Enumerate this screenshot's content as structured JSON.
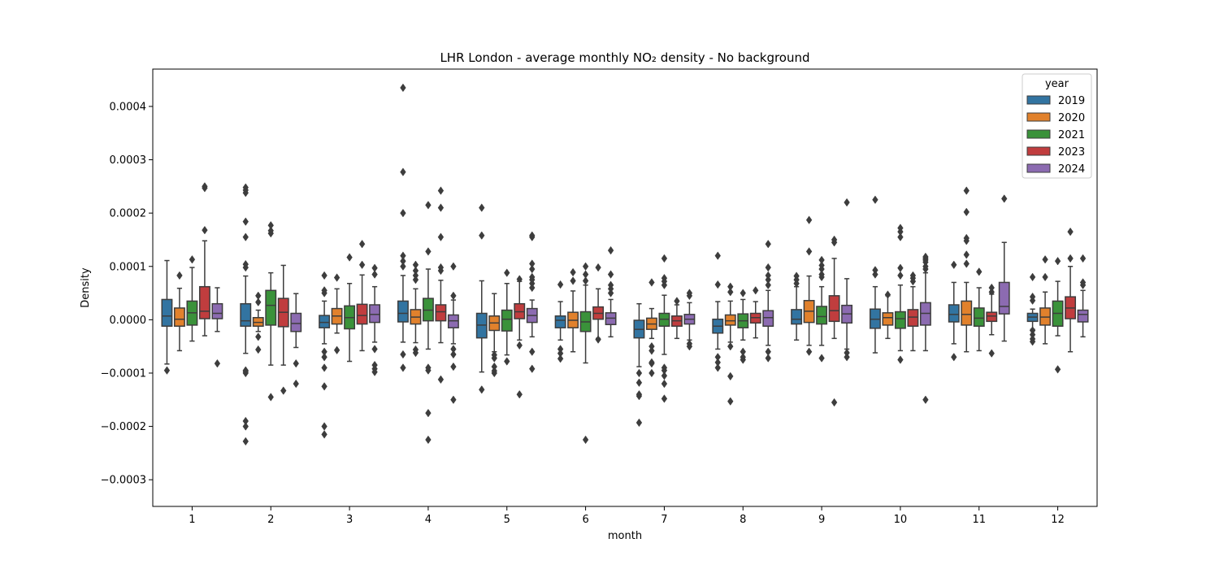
{
  "chart_data": {
    "type": "boxplot",
    "title": "LHR London - average monthly NO₂ density - No background",
    "xlabel": "month",
    "ylabel": "Density",
    "ylim": [
      -0.00035,
      0.00047
    ],
    "yticks": [
      -0.0003,
      -0.0002,
      -0.0001,
      0.0,
      0.0001,
      0.0002,
      0.0003,
      0.0004
    ],
    "ytick_labels": [
      "−0.0003",
      "−0.0002",
      "−0.0001",
      "0.0000",
      "0.0001",
      "0.0002",
      "0.0003",
      "0.0004"
    ],
    "categories": [
      "1",
      "2",
      "3",
      "4",
      "5",
      "6",
      "7",
      "8",
      "9",
      "10",
      "11",
      "12"
    ],
    "legend": {
      "title": "year",
      "position": "top-right"
    },
    "grid": false,
    "series": [
      {
        "name": "2019",
        "color": "#3274a1",
        "boxes": [
          {
            "q1": -1.2e-05,
            "median": 7e-06,
            "q3": 3.8e-05,
            "low": -8.3e-05,
            "high": 0.000111,
            "outliers": [
              -9.5e-05
            ]
          },
          {
            "q1": -1.2e-05,
            "median": -2e-06,
            "q3": 3e-05,
            "low": -6.3e-05,
            "high": 8.2e-05,
            "outliers": [
              -9.5e-05,
              -0.0001,
              -9.7e-05,
              -0.00019,
              -0.0002,
              -0.000228,
              9.8e-05,
              0.000104,
              0.000155,
              0.000184,
              0.000238,
              0.000243,
              0.000248
            ]
          },
          {
            "q1": -1.5e-05,
            "median": -5e-06,
            "q3": 8e-06,
            "low": -4.5e-05,
            "high": 3.5e-05,
            "outliers": [
              -6e-05,
              -7e-05,
              -9e-05,
              -0.000125,
              -0.0002,
              -0.000215,
              5e-05,
              5.5e-05,
              8.3e-05
            ]
          },
          {
            "q1": -4e-06,
            "median": 1.2e-05,
            "q3": 3.5e-05,
            "low": -4.2e-05,
            "high": 8.3e-05,
            "outliers": [
              -6.5e-05,
              -9e-05,
              0.0001,
              0.00011,
              0.00012,
              0.0002,
              0.000277,
              0.000435
            ]
          },
          {
            "q1": -3.4e-05,
            "median": -1e-05,
            "q3": 1.2e-05,
            "low": -9.8e-05,
            "high": 7.3e-05,
            "outliers": [
              -0.000131,
              0.000158,
              0.00021
            ]
          },
          {
            "q1": -1.5e-05,
            "median": -1e-06,
            "q3": 7e-06,
            "low": -3.8e-05,
            "high": 3.4e-05,
            "outliers": [
              -5.5e-05,
              -6.3e-05,
              -7.3e-05,
              6.6e-05
            ]
          },
          {
            "q1": -3.4e-05,
            "median": -1.8e-05,
            "q3": -1e-06,
            "low": -8.8e-05,
            "high": 3e-05,
            "outliers": [
              -0.0001,
              -0.000118,
              -0.00014,
              -0.000143,
              -0.000193
            ]
          },
          {
            "q1": -2.5e-05,
            "median": -1.2e-05,
            "q3": 1e-06,
            "low": -5.5e-05,
            "high": 3.4e-05,
            "outliers": [
              -7e-05,
              -8e-05,
              -9e-05,
              6.6e-05,
              0.00012
            ]
          },
          {
            "q1": -8e-06,
            "median": 1e-06,
            "q3": 1.9e-05,
            "low": -3.8e-05,
            "high": 6.2e-05,
            "outliers": [
              6.8e-05,
              7.5e-05,
              8.2e-05
            ]
          },
          {
            "q1": -1.6e-05,
            "median": 1e-06,
            "q3": 2e-05,
            "low": -6.2e-05,
            "high": 6.2e-05,
            "outliers": [
              8.5e-05,
              9.3e-05,
              0.000225
            ]
          },
          {
            "q1": -4e-06,
            "median": 1e-05,
            "q3": 2.8e-05,
            "low": -4.5e-05,
            "high": 7e-05,
            "outliers": [
              -7e-05,
              0.000103
            ]
          },
          {
            "q1": -3e-06,
            "median": 5e-06,
            "q3": 1.2e-05,
            "low": -1.8e-05,
            "high": 2e-05,
            "outliers": [
              -2e-05,
              -2.8e-05,
              -3.6e-05,
              -4.1e-05,
              3.6e-05,
              4.3e-05,
              8e-05
            ]
          }
        ]
      },
      {
        "name": "2020",
        "color": "#e1812c",
        "boxes": [
          {
            "q1": -1.2e-05,
            "median": 1e-06,
            "q3": 2.2e-05,
            "low": -5.8e-05,
            "high": 5.9e-05,
            "outliers": [
              8.3e-05
            ]
          },
          {
            "q1": -1.2e-05,
            "median": -5e-06,
            "q3": 4e-06,
            "low": -2.2e-05,
            "high": 1.8e-05,
            "outliers": [
              -3.2e-05,
              -5.6e-05,
              3.3e-05,
              4.5e-05
            ]
          },
          {
            "q1": -8e-06,
            "median": 7e-06,
            "q3": 2.1e-05,
            "low": -2.5e-05,
            "high": 5.8e-05,
            "outliers": [
              -5.7e-05,
              7.9e-05
            ]
          },
          {
            "q1": -8e-06,
            "median": 5e-06,
            "q3": 1.9e-05,
            "low": -4.3e-05,
            "high": 5.8e-05,
            "outliers": [
              -5.6e-05,
              -6.2e-05,
              7.5e-05,
              8.3e-05,
              9.2e-05,
              0.000103
            ]
          },
          {
            "q1": -2e-05,
            "median": -6e-06,
            "q3": 7e-06,
            "low": -6e-05,
            "high": 4.9e-05,
            "outliers": [
              -6.6e-05,
              -7.2e-05,
              -8.8e-05,
              -9.6e-05,
              -0.0001
            ]
          },
          {
            "q1": -1.5e-05,
            "median": -1e-06,
            "q3": 1.4e-05,
            "low": -6e-05,
            "high": 5.4e-05,
            "outliers": [
              7.3e-05,
              8.9e-05
            ]
          },
          {
            "q1": -1.8e-05,
            "median": -8e-06,
            "q3": 3e-06,
            "low": -3.5e-05,
            "high": 2.1e-05,
            "outliers": [
              -5e-05,
              -5.8e-05,
              -8e-05,
              -8.2e-05,
              -0.0001,
              7e-05
            ]
          },
          {
            "q1": -1e-05,
            "median": -2e-06,
            "q3": 9e-06,
            "low": -4.2e-05,
            "high": 3.5e-05,
            "outliers": [
              -5e-05,
              -0.000106,
              -0.000153,
              5.2e-05,
              6.2e-05
            ]
          },
          {
            "q1": -5e-06,
            "median": 1.6e-05,
            "q3": 3.6e-05,
            "low": -4.8e-05,
            "high": 8.2e-05,
            "outliers": [
              -6e-05,
              0.000128,
              0.000187
            ]
          },
          {
            "q1": -1e-05,
            "median": 4e-06,
            "q3": 1.3e-05,
            "low": -3.5e-05,
            "high": 4.5e-05,
            "outliers": [
              4.7e-05
            ]
          },
          {
            "q1": -1e-05,
            "median": 1e-05,
            "q3": 3.5e-05,
            "low": -6e-05,
            "high": 7e-05,
            "outliers": [
              0.000105,
              0.000122,
              0.000148,
              0.000153,
              0.000202,
              0.000242
            ]
          },
          {
            "q1": -1e-05,
            "median": 5e-06,
            "q3": 2.2e-05,
            "low": -4.5e-05,
            "high": 5.2e-05,
            "outliers": [
              8e-05,
              0.000113
            ]
          }
        ]
      },
      {
        "name": "2021",
        "color": "#3a923a",
        "boxes": [
          {
            "q1": -1e-05,
            "median": 1.3e-05,
            "q3": 3.5e-05,
            "low": -4e-05,
            "high": 9.8e-05,
            "outliers": [
              0.000113
            ]
          },
          {
            "q1": -1e-05,
            "median": 2.7e-05,
            "q3": 5.5e-05,
            "low": -8.5e-05,
            "high": 8.8e-05,
            "outliers": [
              -0.000145,
              0.000162,
              0.000167,
              0.000177
            ]
          },
          {
            "q1": -1.7e-05,
            "median": 4e-06,
            "q3": 2.6e-05,
            "low": -7.8e-05,
            "high": 6.8e-05,
            "outliers": [
              0.000117
            ]
          },
          {
            "q1": -2e-06,
            "median": 1.8e-05,
            "q3": 4e-05,
            "low": -5.5e-05,
            "high": 9.5e-05,
            "outliers": [
              -9e-05,
              -9.5e-05,
              -0.000175,
              -0.000225,
              0.000128,
              0.000215
            ]
          },
          {
            "q1": -2.1e-05,
            "median": 1e-06,
            "q3": 1.8e-05,
            "low": -6.6e-05,
            "high": 6.8e-05,
            "outliers": [
              -7.8e-05,
              8.8e-05
            ]
          },
          {
            "q1": -2.2e-05,
            "median": -4e-06,
            "q3": 1.5e-05,
            "low": -8.1e-05,
            "high": 6.5e-05,
            "outliers": [
              -0.000225,
              7.3e-05,
              8.5e-05,
              0.0001
            ]
          },
          {
            "q1": -1.2e-05,
            "median": 1e-06,
            "q3": 1.2e-05,
            "low": -6.5e-05,
            "high": 4.6e-05,
            "outliers": [
              -9e-05,
              -9.5e-05,
              -0.000105,
              -0.00012,
              -0.000148,
              6.5e-05,
              7.2e-05,
              7.8e-05,
              0.000115
            ]
          },
          {
            "q1": -1.5e-05,
            "median": -2e-06,
            "q3": 1.1e-05,
            "low": -3.8e-05,
            "high": 3.8e-05,
            "outliers": [
              -6e-05,
              -7e-05,
              -7.5e-05,
              5e-05
            ]
          },
          {
            "q1": -8e-06,
            "median": 6e-06,
            "q3": 2.5e-05,
            "low": -4.8e-05,
            "high": 6.2e-05,
            "outliers": [
              -7.2e-05,
              8e-05,
              8.5e-05,
              9.5e-05,
              0.000102,
              0.000112
            ]
          },
          {
            "q1": -1.6e-05,
            "median": 2e-06,
            "q3": 1.5e-05,
            "low": -5.8e-05,
            "high": 6.5e-05,
            "outliers": [
              -7.5e-05,
              8.3e-05,
              9.7e-05,
              0.000155,
              0.000165,
              0.000172
            ]
          },
          {
            "q1": -1.2e-05,
            "median": 3e-06,
            "q3": 2.2e-05,
            "low": -5.8e-05,
            "high": 6e-05,
            "outliers": [
              9e-05
            ]
          },
          {
            "q1": -1.2e-05,
            "median": 1.2e-05,
            "q3": 3.5e-05,
            "low": -3e-05,
            "high": 7.2e-05,
            "outliers": [
              -9.3e-05,
              0.00011
            ]
          }
        ]
      },
      {
        "name": "2023",
        "color": "#c03d3e",
        "boxes": [
          {
            "q1": 2e-06,
            "median": 1.6e-05,
            "q3": 6.2e-05,
            "low": -3e-05,
            "high": 0.000148,
            "outliers": [
              0.000168,
              0.000247,
              0.00025
            ]
          },
          {
            "q1": -1.3e-05,
            "median": 1.4e-05,
            "q3": 4e-05,
            "low": -8.5e-05,
            "high": 0.000102,
            "outliers": [
              -0.000133
            ]
          },
          {
            "q1": -8e-06,
            "median": 8e-06,
            "q3": 2.9e-05,
            "low": -5.8e-05,
            "high": 8.4e-05,
            "outliers": [
              0.000103,
              0.000142
            ]
          },
          {
            "q1": -2e-06,
            "median": 1.5e-05,
            "q3": 2.8e-05,
            "low": -4.3e-05,
            "high": 7.4e-05,
            "outliers": [
              -0.000112,
              9.2e-05,
              9.8e-05,
              0.000155,
              0.00021,
              0.000242
            ]
          },
          {
            "q1": 2e-06,
            "median": 1.5e-05,
            "q3": 3e-05,
            "low": -3.8e-05,
            "high": 7.2e-05,
            "outliers": [
              -4.8e-05,
              -0.00014,
              7.6e-05
            ]
          },
          {
            "q1": 1e-06,
            "median": 1.2e-05,
            "q3": 2.4e-05,
            "low": -3.5e-05,
            "high": 5.8e-05,
            "outliers": [
              -3.7e-05,
              9.8e-05
            ]
          },
          {
            "q1": -1.2e-05,
            "median": -2e-06,
            "q3": 7e-06,
            "low": -3.5e-05,
            "high": 2.8e-05,
            "outliers": [
              3.5e-05
            ]
          },
          {
            "q1": -6e-06,
            "median": 4e-06,
            "q3": 1.2e-05,
            "low": -3.4e-05,
            "high": 3.4e-05,
            "outliers": [
              5.5e-05
            ]
          },
          {
            "q1": -3e-06,
            "median": 1.7e-05,
            "q3": 4.5e-05,
            "low": -3.5e-05,
            "high": 0.000115,
            "outliers": [
              -0.000155,
              0.000145,
              0.00015
            ]
          },
          {
            "q1": -1.2e-05,
            "median": 5e-06,
            "q3": 1.9e-05,
            "low": -5.8e-05,
            "high": 6.2e-05,
            "outliers": [
              7.2e-05,
              7.8e-05,
              8.3e-05
            ]
          },
          {
            "q1": -3e-06,
            "median": 7e-06,
            "q3": 1.4e-05,
            "low": -2.8e-05,
            "high": 4.8e-05,
            "outliers": [
              -6.3e-05,
              5.2e-05,
              6e-05
            ]
          },
          {
            "q1": 2e-06,
            "median": 2.2e-05,
            "q3": 4.3e-05,
            "low": -6e-05,
            "high": 0.0001,
            "outliers": [
              0.000115,
              0.000165
            ]
          }
        ]
      },
      {
        "name": "2024",
        "color": "#8c6bb1",
        "boxes": [
          {
            "q1": 2e-06,
            "median": 1.2e-05,
            "q3": 3e-05,
            "low": -2.2e-05,
            "high": 6e-05,
            "outliers": [
              -8.2e-05
            ]
          },
          {
            "q1": -2.2e-05,
            "median": -7e-06,
            "q3": 1.2e-05,
            "low": -5.2e-05,
            "high": 4.9e-05,
            "outliers": [
              -8.2e-05,
              -0.00012
            ]
          },
          {
            "q1": -5e-06,
            "median": 1e-05,
            "q3": 2.8e-05,
            "low": -4.2e-05,
            "high": 6.2e-05,
            "outliers": [
              -5.5e-05,
              -8.5e-05,
              -9.2e-05,
              -9.8e-05,
              8.5e-05,
              9.7e-05
            ]
          },
          {
            "q1": -1.5e-05,
            "median": -2e-06,
            "q3": 9e-06,
            "low": -4.5e-05,
            "high": 3.7e-05,
            "outliers": [
              -5.5e-05,
              -6.5e-05,
              -8.8e-05,
              -0.00015,
              4.5e-05,
              0.0001
            ]
          },
          {
            "q1": -5e-06,
            "median": 8e-06,
            "q3": 2.1e-05,
            "low": -3.2e-05,
            "high": 3.7e-05,
            "outliers": [
              -6e-05,
              -9.2e-05,
              6e-05,
              6.8e-05,
              7.5e-05,
              8e-05,
              9.5e-05,
              0.000105,
              0.000155,
              0.000158
            ]
          },
          {
            "q1": -9e-06,
            "median": 3e-06,
            "q3": 1.3e-05,
            "low": -3.2e-05,
            "high": 3.8e-05,
            "outliers": [
              5e-05,
              5.8e-05,
              6.5e-05,
              8.5e-05,
              0.00013
            ]
          },
          {
            "q1": -8e-06,
            "median": 1e-06,
            "q3": 1e-05,
            "low": -3.8e-05,
            "high": 3.2e-05,
            "outliers": [
              -4.5e-05,
              -5e-05,
              4.5e-05,
              5e-05
            ]
          },
          {
            "q1": -1.2e-05,
            "median": 4e-06,
            "q3": 1.7e-05,
            "low": -4.8e-05,
            "high": 5.5e-05,
            "outliers": [
              -6e-05,
              -7.2e-05,
              6.5e-05,
              7.5e-05,
              8.3e-05,
              9.8e-05,
              0.000142
            ]
          },
          {
            "q1": -6e-06,
            "median": 1.1e-05,
            "q3": 2.7e-05,
            "low": -5.5e-05,
            "high": 7.7e-05,
            "outliers": [
              -6.2e-05,
              -7e-05,
              0.00022
            ]
          },
          {
            "q1": -1e-05,
            "median": 1.2e-05,
            "q3": 3.2e-05,
            "low": -5.8e-05,
            "high": 8.8e-05,
            "outliers": [
              -0.00015,
              9.5e-05,
              0.0001,
              0.000108,
              0.000112,
              0.000115,
              0.000118
            ]
          },
          {
            "q1": 1.1e-05,
            "median": 2.5e-05,
            "q3": 7e-05,
            "low": -4e-05,
            "high": 0.000145,
            "outliers": [
              0.000227
            ]
          },
          {
            "q1": -4e-06,
            "median": 1e-05,
            "q3": 1.8e-05,
            "low": -3.2e-05,
            "high": 5.5e-05,
            "outliers": [
              6.5e-05,
              7e-05,
              0.000115
            ]
          }
        ]
      }
    ]
  }
}
